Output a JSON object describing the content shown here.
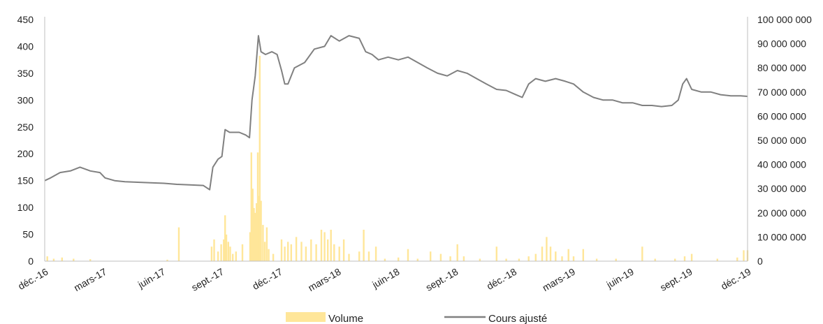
{
  "chart_data": {
    "type": "bar+line",
    "title": "",
    "xlabel": "",
    "ylabel_left": "",
    "ylabel_right": "",
    "ylim_left": [
      0,
      450
    ],
    "ylim_right": [
      0,
      100000000
    ],
    "grid": false,
    "legend_position": "bottom",
    "x_tick_labels": [
      "déc.-16",
      "mars-17",
      "juin-17",
      "sept.-17",
      "déc.-17",
      "mars-18",
      "juin-18",
      "sept.-18",
      "déc.-18",
      "mars-19",
      "juin-19",
      "sept.-19",
      "déc.-19"
    ],
    "y_left_tick_labels": [
      "0",
      "50",
      "100",
      "150",
      "200",
      "250",
      "300",
      "350",
      "400",
      "450"
    ],
    "y_right_tick_labels": [
      "0",
      "10 000 000",
      "20 000 000",
      "30 000 000",
      "40 000 000",
      "50 000 000",
      "60 000 000",
      "70 000 000",
      "80 000 000",
      "90 000 000",
      "100 000 000"
    ],
    "colors": {
      "volume": "#FFE699",
      "price": "#808080",
      "axis": "#BFBFBF"
    },
    "series": [
      {
        "name": "Cours ajusté",
        "type": "line",
        "axis": "left",
        "points": [
          [
            "2016-12-01",
            150
          ],
          [
            "2016-12-10",
            155
          ],
          [
            "2016-12-25",
            165
          ],
          [
            "2017-01-10",
            168
          ],
          [
            "2017-01-25",
            175
          ],
          [
            "2017-02-10",
            168
          ],
          [
            "2017-02-25",
            165
          ],
          [
            "2017-03-05",
            155
          ],
          [
            "2017-03-20",
            150
          ],
          [
            "2017-04-05",
            148
          ],
          [
            "2017-04-25",
            147
          ],
          [
            "2017-05-15",
            146
          ],
          [
            "2017-06-05",
            145
          ],
          [
            "2017-06-25",
            143
          ],
          [
            "2017-07-15",
            142
          ],
          [
            "2017-08-05",
            141
          ],
          [
            "2017-08-15",
            133
          ],
          [
            "2017-08-20",
            175
          ],
          [
            "2017-08-28",
            190
          ],
          [
            "2017-09-03",
            195
          ],
          [
            "2017-09-08",
            245
          ],
          [
            "2017-09-15",
            240
          ],
          [
            "2017-09-30",
            240
          ],
          [
            "2017-10-10",
            235
          ],
          [
            "2017-10-16",
            230
          ],
          [
            "2017-10-20",
            300
          ],
          [
            "2017-10-25",
            345
          ],
          [
            "2017-10-30",
            420
          ],
          [
            "2017-11-03",
            390
          ],
          [
            "2017-11-10",
            385
          ],
          [
            "2017-11-20",
            390
          ],
          [
            "2017-11-28",
            385
          ],
          [
            "2017-12-05",
            355
          ],
          [
            "2017-12-10",
            330
          ],
          [
            "2017-12-15",
            330
          ],
          [
            "2017-12-25",
            360
          ],
          [
            "2018-01-10",
            370
          ],
          [
            "2018-01-25",
            395
          ],
          [
            "2018-02-10",
            400
          ],
          [
            "2018-02-20",
            420
          ],
          [
            "2018-03-05",
            410
          ],
          [
            "2018-03-20",
            420
          ],
          [
            "2018-04-05",
            415
          ],
          [
            "2018-04-15",
            390
          ],
          [
            "2018-04-25",
            385
          ],
          [
            "2018-05-05",
            375
          ],
          [
            "2018-05-20",
            380
          ],
          [
            "2018-06-05",
            375
          ],
          [
            "2018-06-20",
            380
          ],
          [
            "2018-07-05",
            370
          ],
          [
            "2018-07-20",
            360
          ],
          [
            "2018-08-05",
            350
          ],
          [
            "2018-08-20",
            345
          ],
          [
            "2018-09-05",
            355
          ],
          [
            "2018-09-20",
            350
          ],
          [
            "2018-10-05",
            340
          ],
          [
            "2018-10-20",
            330
          ],
          [
            "2018-11-05",
            320
          ],
          [
            "2018-11-20",
            318
          ],
          [
            "2018-12-05",
            310
          ],
          [
            "2018-12-15",
            305
          ],
          [
            "2018-12-25",
            330
          ],
          [
            "2019-01-05",
            340
          ],
          [
            "2019-01-20",
            335
          ],
          [
            "2019-02-05",
            340
          ],
          [
            "2019-02-20",
            335
          ],
          [
            "2019-03-05",
            330
          ],
          [
            "2019-03-20",
            315
          ],
          [
            "2019-04-05",
            305
          ],
          [
            "2019-04-20",
            300
          ],
          [
            "2019-05-05",
            300
          ],
          [
            "2019-05-20",
            295
          ],
          [
            "2019-06-05",
            295
          ],
          [
            "2019-06-20",
            290
          ],
          [
            "2019-07-05",
            290
          ],
          [
            "2019-07-20",
            288
          ],
          [
            "2019-08-05",
            290
          ],
          [
            "2019-08-15",
            300
          ],
          [
            "2019-08-22",
            330
          ],
          [
            "2019-08-28",
            340
          ],
          [
            "2019-09-05",
            320
          ],
          [
            "2019-09-20",
            315
          ],
          [
            "2019-10-05",
            315
          ],
          [
            "2019-10-20",
            310
          ],
          [
            "2019-11-05",
            308
          ],
          [
            "2019-11-20",
            308
          ],
          [
            "2019-12-01",
            307
          ]
        ]
      },
      {
        "name": "Volume",
        "type": "bar",
        "axis": "right",
        "points": [
          [
            "2016-12-05",
            2000000
          ],
          [
            "2016-12-15",
            1000000
          ],
          [
            "2016-12-28",
            1500000
          ],
          [
            "2017-01-15",
            1000000
          ],
          [
            "2017-02-10",
            800000
          ],
          [
            "2017-06-10",
            600000
          ],
          [
            "2017-06-28",
            14000000
          ],
          [
            "2017-08-18",
            6000000
          ],
          [
            "2017-08-22",
            9000000
          ],
          [
            "2017-08-28",
            4000000
          ],
          [
            "2017-09-02",
            7000000
          ],
          [
            "2017-09-06",
            9000000
          ],
          [
            "2017-09-08",
            19000000
          ],
          [
            "2017-09-10",
            11000000
          ],
          [
            "2017-09-13",
            8000000
          ],
          [
            "2017-09-16",
            6000000
          ],
          [
            "2017-09-20",
            3000000
          ],
          [
            "2017-09-25",
            4000000
          ],
          [
            "2017-10-05",
            7000000
          ],
          [
            "2017-10-17",
            12000000
          ],
          [
            "2017-10-19",
            45000000
          ],
          [
            "2017-10-21",
            30000000
          ],
          [
            "2017-10-23",
            22000000
          ],
          [
            "2017-10-25",
            20000000
          ],
          [
            "2017-10-27",
            24000000
          ],
          [
            "2017-10-29",
            45000000
          ],
          [
            "2017-10-31",
            27000000
          ],
          [
            "2017-11-01",
            85000000
          ],
          [
            "2017-11-03",
            25000000
          ],
          [
            "2017-11-06",
            15000000
          ],
          [
            "2017-11-09",
            8000000
          ],
          [
            "2017-11-12",
            14000000
          ],
          [
            "2017-11-15",
            5000000
          ],
          [
            "2017-11-22",
            3000000
          ],
          [
            "2017-12-05",
            9000000
          ],
          [
            "2017-12-10",
            6000000
          ],
          [
            "2017-12-15",
            8000000
          ],
          [
            "2017-12-20",
            7000000
          ],
          [
            "2017-12-28",
            10000000
          ],
          [
            "2018-01-05",
            8000000
          ],
          [
            "2018-01-12",
            6000000
          ],
          [
            "2018-01-20",
            9000000
          ],
          [
            "2018-01-28",
            7000000
          ],
          [
            "2018-02-05",
            13000000
          ],
          [
            "2018-02-10",
            12000000
          ],
          [
            "2018-02-15",
            9000000
          ],
          [
            "2018-02-20",
            13000000
          ],
          [
            "2018-02-25",
            7000000
          ],
          [
            "2018-03-05",
            6000000
          ],
          [
            "2018-03-12",
            9000000
          ],
          [
            "2018-03-20",
            3000000
          ],
          [
            "2018-04-05",
            4000000
          ],
          [
            "2018-04-12",
            13000000
          ],
          [
            "2018-04-20",
            4000000
          ],
          [
            "2018-05-01",
            6000000
          ],
          [
            "2018-05-15",
            1000000
          ],
          [
            "2018-06-05",
            1500000
          ],
          [
            "2018-06-20",
            5000000
          ],
          [
            "2018-07-05",
            1000000
          ],
          [
            "2018-07-25",
            4000000
          ],
          [
            "2018-08-10",
            3000000
          ],
          [
            "2018-08-25",
            2000000
          ],
          [
            "2018-09-05",
            7000000
          ],
          [
            "2018-09-15",
            2000000
          ],
          [
            "2018-10-10",
            1000000
          ],
          [
            "2018-11-05",
            6000000
          ],
          [
            "2018-11-20",
            1000000
          ],
          [
            "2018-12-10",
            1000000
          ],
          [
            "2018-12-25",
            2000000
          ],
          [
            "2019-01-05",
            3000000
          ],
          [
            "2019-01-15",
            6000000
          ],
          [
            "2019-01-22",
            10000000
          ],
          [
            "2019-01-28",
            6000000
          ],
          [
            "2019-02-05",
            4000000
          ],
          [
            "2019-02-15",
            2000000
          ],
          [
            "2019-02-25",
            5000000
          ],
          [
            "2019-03-05",
            2000000
          ],
          [
            "2019-03-20",
            5000000
          ],
          [
            "2019-04-10",
            1000000
          ],
          [
            "2019-05-10",
            1000000
          ],
          [
            "2019-06-20",
            6000000
          ],
          [
            "2019-07-10",
            1000000
          ],
          [
            "2019-08-10",
            1000000
          ],
          [
            "2019-08-25",
            2000000
          ],
          [
            "2019-09-05",
            3000000
          ],
          [
            "2019-10-15",
            1000000
          ],
          [
            "2019-11-15",
            1500000
          ],
          [
            "2019-11-25",
            4500000
          ],
          [
            "2019-12-01",
            4500000
          ]
        ]
      }
    ]
  },
  "legend": {
    "volume_label": "Volume",
    "price_label": "Cours ajusté"
  }
}
